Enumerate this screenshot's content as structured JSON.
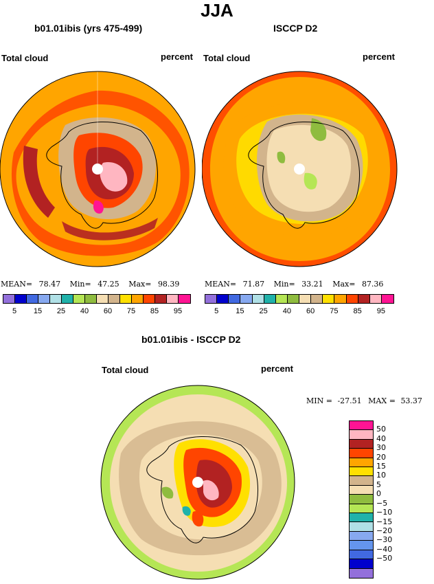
{
  "figure": {
    "season": "JJA"
  },
  "panels": [
    {
      "title": "b01.01ibis (yrs 475-499)",
      "field": "Total cloud",
      "units": "percent",
      "stats": {
        "mean_label": "MEAN=",
        "mean": "78.47",
        "min_label": "Min=",
        "min": "47.25",
        "max_label": "Max=",
        "max": "98.39"
      }
    },
    {
      "title": "ISCCP D2",
      "field": "Total cloud",
      "units": "percent",
      "stats": {
        "mean_label": "MEAN=",
        "mean": "71.87",
        "min_label": "Min=",
        "min": "33.21",
        "max_label": "Max=",
        "max": "87.36"
      }
    }
  ],
  "abs_colorbar": {
    "colors": [
      "#9370db",
      "#0000cd",
      "#4169e1",
      "#87a9f0",
      "#b0e0e6",
      "#20b2aa",
      "#b5e655",
      "#8fbc3f",
      "#f5deb3",
      "#d2b48c",
      "#ffe000",
      "#ffa500",
      "#ff4500",
      "#b22222",
      "#ffb6c1",
      "#ff1493"
    ],
    "ticks": [
      "5",
      "15",
      "25",
      "40",
      "60",
      "75",
      "85",
      "95"
    ]
  },
  "diff_panel": {
    "title": "b01.01ibis - ISCCP D2",
    "field": "Total cloud",
    "units": "percent",
    "stats": {
      "min_label": "MIN =",
      "min": "-27.51",
      "max_label": "MAX =",
      "max": "53.37"
    }
  },
  "diff_colorbar": {
    "colors": [
      "#ff1493",
      "#ffb6c1",
      "#b22222",
      "#ff4500",
      "#ffa500",
      "#ffe000",
      "#d2b48c",
      "#f5deb3",
      "#8fbc3f",
      "#b5e655",
      "#20b2aa",
      "#b0e0e6",
      "#87a9f0",
      "#6495ed",
      "#4169e1",
      "#0000cd",
      "#9370db"
    ],
    "ticks": [
      "50",
      "40",
      "30",
      "20",
      "15",
      "10",
      "5",
      "0",
      "−5",
      "−10",
      "−15",
      "−20",
      "−30",
      "−40",
      "−50"
    ]
  },
  "colors": {
    "ocean_bg_model": "#ffa500",
    "ocean_bg_obs": "#ffa500",
    "diff_bg": "#f5deb3",
    "coast": "#000000"
  }
}
